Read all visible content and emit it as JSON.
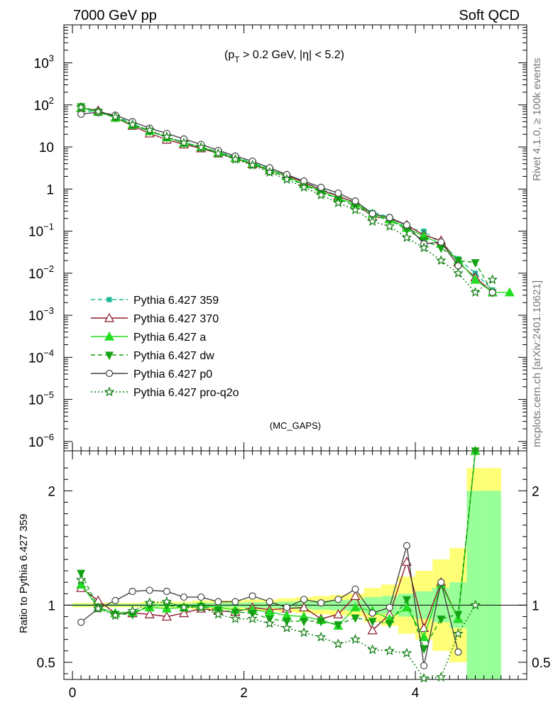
{
  "header": {
    "left_title": "7000 GeV pp",
    "right_title": "Soft QCD",
    "cut_label": "(p",
    "cut_sub": "T",
    "cut_rest": " > 0.2 GeV, |η| < 5.2)",
    "analysis": "(MC_GAPS)",
    "side_top": "Rivet 4.1.0, ≥ 100k events",
    "side_bottom": "mcplots.cern.ch [arXiv:2401.10621]"
  },
  "chart_data": [
    {
      "type": "line",
      "panel": "main",
      "yscale": "log",
      "xlim": [
        -0.1,
        5.3
      ],
      "ylim": [
        6e-07,
        8000
      ],
      "x_ticks": [
        0,
        2,
        4
      ],
      "y_ticks": [
        {
          "label": "10",
          "sup": "3"
        },
        {
          "label": "10",
          "sup": "2"
        },
        {
          "label": "10",
          "sup": ""
        },
        {
          "label": "1",
          "sup": ""
        },
        {
          "label": "10",
          "sup": "−1"
        },
        {
          "label": "10",
          "sup": "−2"
        },
        {
          "label": "10",
          "sup": "−3"
        },
        {
          "label": "10",
          "sup": "−4"
        },
        {
          "label": "10",
          "sup": "−5"
        },
        {
          "label": "10",
          "sup": "−6"
        }
      ],
      "y_tick_values": [
        1000,
        100,
        10,
        1,
        0.1,
        0.01,
        0.001,
        0.0001,
        1e-05,
        1e-06
      ],
      "x": [
        0.1,
        0.3,
        0.5,
        0.7,
        0.9,
        1.1,
        1.3,
        1.5,
        1.7,
        1.9,
        2.1,
        2.3,
        2.5,
        2.7,
        2.9,
        3.1,
        3.3,
        3.5,
        3.7,
        3.9,
        4.1,
        4.3,
        4.5,
        4.7,
        4.9,
        5.1
      ],
      "series": [
        {
          "name": "Pythia 6.427 359",
          "color": "#1dba98",
          "dash": "6,4",
          "marker": "square",
          "fill": true,
          "values": [
            72,
            70,
            55,
            36,
            24,
            17,
            13,
            10,
            7.6,
            5.8,
            4.2,
            3.1,
            2.2,
            1.45,
            1.0,
            0.7,
            0.45,
            0.28,
            0.22,
            0.12,
            0.1,
            0.05,
            0.022,
            0.01,
            0.004,
            null
          ]
        },
        {
          "name": "Pythia 6.427 370",
          "color": "#8b1a2e",
          "dash": "",
          "marker": "triangle",
          "fill": false,
          "values": [
            84,
            74,
            50,
            32,
            21,
            15,
            11.5,
            9.3,
            7.1,
            5.4,
            3.9,
            2.8,
            2.1,
            1.45,
            0.95,
            0.68,
            0.48,
            0.22,
            0.2,
            0.14,
            0.08,
            0.06,
            0.018,
            0.008,
            0.0035,
            null
          ]
        },
        {
          "name": "Pythia 6.427 a",
          "color": "#22dd22",
          "dash": "",
          "marker": "triangle",
          "fill": true,
          "values": [
            85,
            68,
            50,
            34,
            24,
            17,
            12.5,
            10,
            7.4,
            5.5,
            4.1,
            2.9,
            2.0,
            1.3,
            0.9,
            0.6,
            0.45,
            0.26,
            0.19,
            0.12,
            0.075,
            0.05,
            0.02,
            0.007,
            0.0035,
            0.0035
          ]
        },
        {
          "name": "Pythia 6.427 dw",
          "color": "#14a314",
          "dash": "6,4",
          "marker": "triangle-down",
          "fill": true,
          "values": [
            92,
            68,
            50,
            33,
            24,
            17,
            12.5,
            9.8,
            7.3,
            5.4,
            3.9,
            2.7,
            1.9,
            1.25,
            0.85,
            0.58,
            0.4,
            0.24,
            0.18,
            0.11,
            0.06,
            0.04,
            0.02,
            0.018,
            0.0035,
            null
          ]
        },
        {
          "name": "Pythia 6.427 p0",
          "color": "#444444",
          "dash": "",
          "marker": "circle",
          "fill": false,
          "values": [
            60,
            68,
            57,
            40,
            28,
            21,
            15.5,
            11.5,
            8.3,
            6.1,
            4.6,
            3.2,
            2.2,
            1.55,
            1.1,
            0.8,
            0.52,
            0.26,
            0.21,
            0.14,
            0.05,
            0.055,
            0.015,
            null,
            0.0035,
            null
          ]
        },
        {
          "name": "Pythia 6.427 pro-q2o",
          "color": "#0d7a0d",
          "dash": "2,3",
          "marker": "star",
          "fill": false,
          "values": [
            88,
            70,
            52,
            34,
            25,
            17.5,
            12.5,
            9.8,
            7.0,
            5.1,
            3.7,
            2.5,
            1.7,
            1.1,
            0.72,
            0.47,
            0.32,
            0.17,
            0.13,
            0.07,
            0.04,
            0.02,
            0.01,
            0.0035,
            0.007,
            null
          ]
        }
      ],
      "legend_position": "left"
    },
    {
      "type": "line",
      "panel": "ratio",
      "ylabel": "Ratio to Pythia 6.427 359",
      "xlim": [
        -0.1,
        5.3
      ],
      "ylim": [
        0.35,
        2.35
      ],
      "x_ticks": [
        0,
        2,
        4
      ],
      "y_ticks": [
        {
          "label": "0.5",
          "value": 0.5
        },
        {
          "label": "1",
          "value": 1
        },
        {
          "label": "2",
          "value": 2
        }
      ],
      "x": [
        0.1,
        0.3,
        0.5,
        0.7,
        0.9,
        1.1,
        1.3,
        1.5,
        1.7,
        1.9,
        2.1,
        2.3,
        2.5,
        2.7,
        2.9,
        3.1,
        3.3,
        3.5,
        3.7,
        3.9,
        4.1,
        4.3,
        4.5,
        4.7,
        4.9
      ],
      "band_green": [
        0.01,
        0.01,
        0.01,
        0.01,
        0.015,
        0.015,
        0.015,
        0.02,
        0.02,
        0.02,
        0.025,
        0.025,
        0.03,
        0.035,
        0.04,
        0.045,
        0.05,
        0.07,
        0.08,
        0.1,
        0.12,
        0.15,
        0.2,
        1.0,
        1.0
      ],
      "band_yellow": [
        0.02,
        0.02,
        0.02,
        0.02,
        0.03,
        0.03,
        0.03,
        0.04,
        0.04,
        0.04,
        0.05,
        0.05,
        0.06,
        0.07,
        0.08,
        0.09,
        0.1,
        0.15,
        0.18,
        0.25,
        0.3,
        0.4,
        0.5,
        1.2,
        1.2
      ],
      "series": [
        {
          "name": "Pythia 6.427 370",
          "color": "#8b1a2e",
          "dash": "",
          "marker": "triangle",
          "fill": false,
          "values": [
            1.15,
            1.04,
            0.93,
            0.93,
            0.92,
            0.9,
            0.93,
            0.97,
            0.95,
            0.94,
            0.98,
            0.96,
            0.97,
            0.98,
            0.88,
            0.92,
            1.08,
            0.78,
            0.92,
            1.38,
            0.8,
            1.2,
            0.88,
            2.35,
            null
          ]
        },
        {
          "name": "Pythia 6.427 a",
          "color": "#22dd22",
          "dash": "",
          "marker": "triangle",
          "fill": true,
          "values": [
            1.18,
            0.98,
            0.93,
            0.94,
            0.98,
            0.97,
            0.98,
            1.0,
            0.98,
            0.96,
            0.96,
            0.94,
            0.91,
            0.9,
            0.87,
            0.82,
            0.98,
            0.95,
            0.88,
            0.98,
            0.72,
            1.18,
            0.88,
            2.35,
            null
          ]
        },
        {
          "name": "Pythia 6.427 dw",
          "color": "#14a314",
          "dash": "6,4",
          "marker": "triangle-down",
          "fill": true,
          "values": [
            1.28,
            0.98,
            0.92,
            0.92,
            1.0,
            1.0,
            0.98,
            0.99,
            0.96,
            0.94,
            0.93,
            0.88,
            0.86,
            0.86,
            0.86,
            0.83,
            0.89,
            0.86,
            0.84,
            1.05,
            0.62,
            0.88,
            0.92,
            2.35,
            null
          ]
        },
        {
          "name": "Pythia 6.427 p0",
          "color": "#444444",
          "dash": "",
          "marker": "circle",
          "fill": false,
          "values": [
            0.85,
            0.97,
            1.04,
            1.12,
            1.13,
            1.12,
            1.07,
            1.07,
            1.03,
            1.03,
            1.08,
            1.03,
            0.98,
            1.05,
            1.02,
            1.05,
            1.14,
            0.93,
            0.98,
            1.52,
            0.47,
            1.2,
            0.59,
            null,
            null
          ]
        },
        {
          "name": "Pythia 6.427 pro-q2o",
          "color": "#0d7a0d",
          "dash": "2,3",
          "marker": "star",
          "fill": false,
          "values": [
            1.22,
            0.97,
            0.91,
            0.95,
            1.02,
            1.03,
            0.98,
            0.98,
            0.92,
            0.88,
            0.88,
            0.84,
            0.8,
            0.76,
            0.72,
            0.66,
            0.7,
            0.61,
            0.6,
            0.58,
            0.36,
            0.37,
            0.75,
            1.0,
            null
          ]
        }
      ]
    }
  ]
}
